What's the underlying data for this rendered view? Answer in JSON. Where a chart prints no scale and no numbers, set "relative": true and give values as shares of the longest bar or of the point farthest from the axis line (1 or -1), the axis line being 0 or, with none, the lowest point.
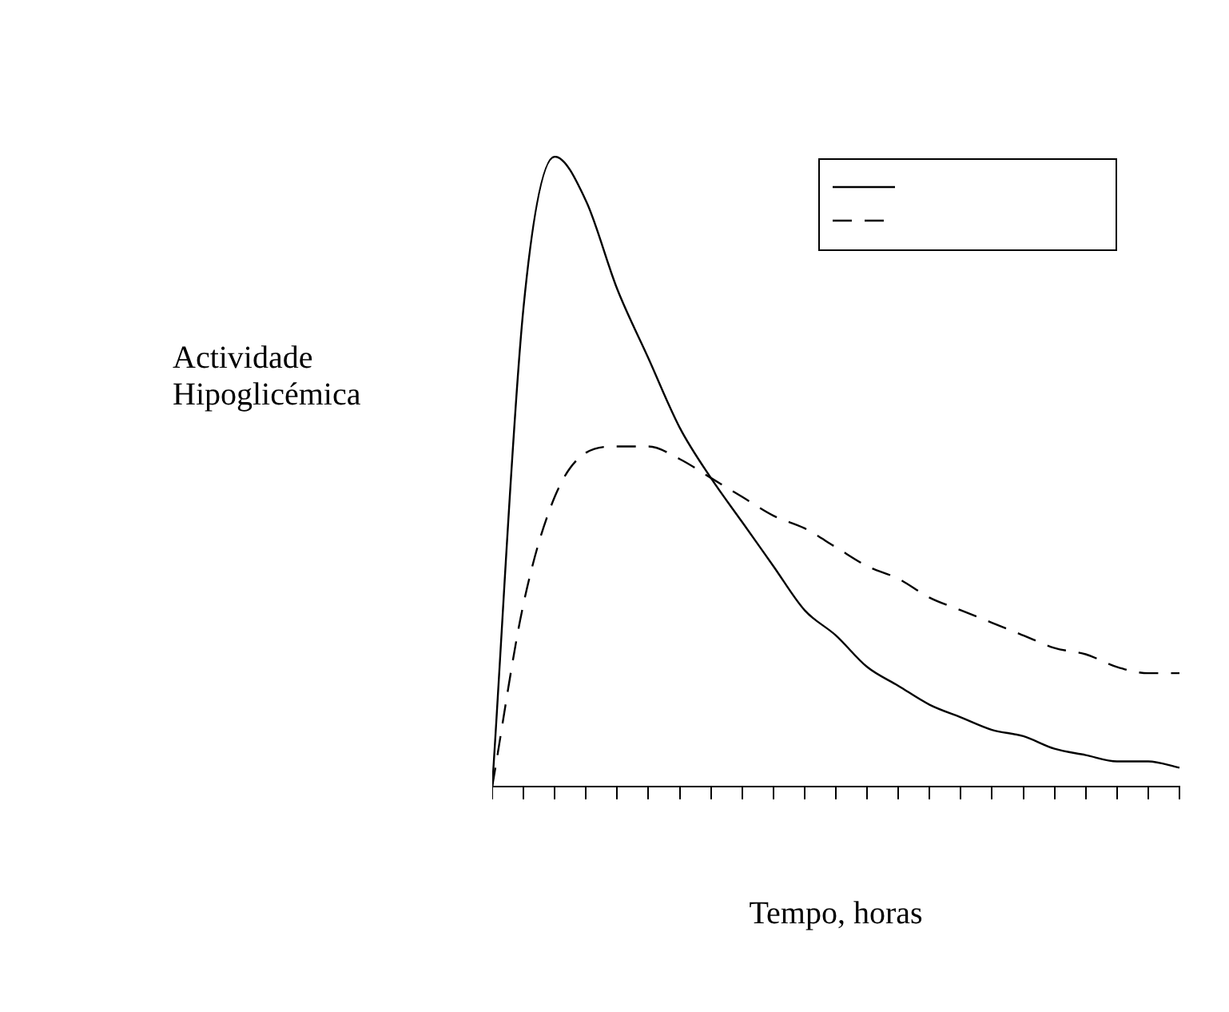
{
  "chart_data": {
    "type": "line",
    "xlabel": "Tempo, horas",
    "ylabel": "Actividade\nHipoglicémica",
    "relative": true,
    "tick_labels": false,
    "grid": false,
    "marker": "none",
    "categories": [
      null,
      null,
      null,
      null,
      null,
      null,
      null,
      null,
      null,
      null,
      null,
      null,
      null,
      null,
      null,
      null,
      null,
      null,
      null,
      null,
      null,
      null,
      null
    ],
    "series": [
      {
        "color": "#000000",
        "line_style": "solid",
        "values": [
          0,
          0.76,
          1.0,
          0.93,
          0.79,
          0.68,
          0.57,
          0.49,
          0.42,
          0.35,
          0.28,
          0.24,
          0.19,
          0.16,
          0.13,
          0.11,
          0.09,
          0.08,
          0.06,
          0.05,
          0.04,
          0.04,
          0.03
        ]
      },
      {
        "color": "#000000",
        "line_style": "dashed",
        "values": [
          0,
          0.29,
          0.46,
          0.53,
          0.54,
          0.54,
          0.52,
          0.49,
          0.46,
          0.43,
          0.41,
          0.38,
          0.35,
          0.33,
          0.3,
          0.28,
          0.26,
          0.24,
          0.22,
          0.21,
          0.19,
          0.18,
          0.18
        ]
      }
    ]
  }
}
